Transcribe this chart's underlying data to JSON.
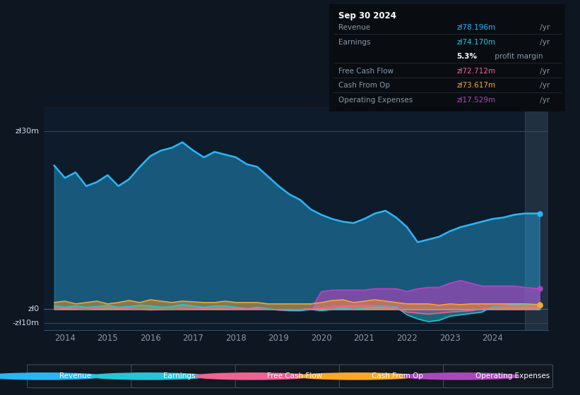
{
  "bg_color": "#0e1621",
  "plot_bg_color": "#0d1b2a",
  "xlim": [
    2013.5,
    2025.3
  ],
  "ylim": [
    -15,
    148
  ],
  "xticks": [
    2014,
    2015,
    2016,
    2017,
    2018,
    2019,
    2020,
    2021,
    2022,
    2023,
    2024
  ],
  "hlines": [
    {
      "y": 130,
      "label": "zł30m"
    },
    {
      "y": 0,
      "label": "zł0"
    },
    {
      "y": -10,
      "label": "-zł10m"
    }
  ],
  "colors": {
    "revenue": "#29b6f6",
    "earnings": "#26c6da",
    "free_cash_flow": "#f06292",
    "cash_from_op": "#ffa726",
    "operating_expenses": "#ab47bc"
  },
  "revenue_x": [
    2013.75,
    2014.0,
    2014.25,
    2014.5,
    2014.75,
    2015.0,
    2015.25,
    2015.5,
    2015.75,
    2016.0,
    2016.25,
    2016.5,
    2016.75,
    2017.0,
    2017.25,
    2017.5,
    2017.75,
    2018.0,
    2018.25,
    2018.5,
    2018.75,
    2019.0,
    2019.25,
    2019.5,
    2019.75,
    2020.0,
    2020.25,
    2020.5,
    2020.75,
    2021.0,
    2021.25,
    2021.5,
    2021.75,
    2022.0,
    2022.25,
    2022.5,
    2022.75,
    2023.0,
    2023.25,
    2023.5,
    2023.75,
    2024.0,
    2024.25,
    2024.5,
    2024.75,
    2025.1
  ],
  "revenue_y": [
    105,
    96,
    100,
    90,
    93,
    98,
    90,
    95,
    104,
    112,
    116,
    118,
    122,
    116,
    111,
    115,
    113,
    111,
    106,
    104,
    97,
    90,
    84,
    80,
    73,
    69,
    66,
    64,
    63,
    66,
    70,
    72,
    67,
    60,
    49,
    51,
    53,
    57,
    60,
    62,
    64,
    66,
    67,
    69,
    70,
    70
  ],
  "earnings_x": [
    2013.75,
    2014.0,
    2014.25,
    2014.5,
    2014.75,
    2015.0,
    2015.25,
    2015.5,
    2015.75,
    2016.0,
    2016.25,
    2016.5,
    2016.75,
    2017.0,
    2017.25,
    2017.5,
    2017.75,
    2018.0,
    2018.25,
    2018.5,
    2018.75,
    2019.0,
    2019.25,
    2019.5,
    2019.75,
    2020.0,
    2020.25,
    2020.5,
    2020.75,
    2021.0,
    2021.25,
    2021.5,
    2021.75,
    2022.0,
    2022.25,
    2022.5,
    2022.75,
    2023.0,
    2023.25,
    2023.5,
    2023.75,
    2024.0,
    2024.25,
    2024.5,
    2024.75,
    2025.1
  ],
  "earnings_y": [
    2.5,
    1.5,
    2.5,
    1.5,
    2,
    3,
    1.5,
    2,
    3,
    2.5,
    1.5,
    2,
    3.5,
    2.5,
    1.5,
    2.5,
    2.5,
    1.5,
    0.5,
    1.5,
    0.5,
    -0.5,
    -1,
    -1,
    0,
    -1,
    0,
    1,
    0,
    1,
    1.5,
    2.5,
    1.5,
    -4,
    -7,
    -9,
    -8,
    -5,
    -4,
    -3,
    -2,
    2,
    2.5,
    3.5,
    3.5,
    3
  ],
  "fcf_x": [
    2013.75,
    2014.0,
    2014.5,
    2015.0,
    2015.5,
    2016.0,
    2016.5,
    2017.0,
    2017.5,
    2018.0,
    2018.5,
    2019.0,
    2019.5,
    2020.0,
    2020.5,
    2021.0,
    2021.5,
    2022.0,
    2022.5,
    2023.0,
    2023.5,
    2024.0,
    2024.5,
    2024.75,
    2025.1
  ],
  "fcf_y": [
    0,
    1,
    0,
    1.5,
    0.5,
    -0.5,
    0,
    0.5,
    1,
    0.5,
    0.5,
    -0.5,
    0,
    1,
    2.5,
    3,
    2.5,
    -2,
    -3.5,
    -2,
    -1,
    1.5,
    2,
    2.5,
    2
  ],
  "cashfromop_x": [
    2013.75,
    2014.0,
    2014.25,
    2014.5,
    2014.75,
    2015.0,
    2015.25,
    2015.5,
    2015.75,
    2016.0,
    2016.25,
    2016.5,
    2016.75,
    2017.0,
    2017.25,
    2017.5,
    2017.75,
    2018.0,
    2018.25,
    2018.5,
    2018.75,
    2019.0,
    2019.25,
    2019.5,
    2019.75,
    2020.0,
    2020.25,
    2020.5,
    2020.75,
    2021.0,
    2021.25,
    2021.5,
    2021.75,
    2022.0,
    2022.25,
    2022.5,
    2022.75,
    2023.0,
    2023.25,
    2023.5,
    2023.75,
    2024.0,
    2024.25,
    2024.5,
    2024.75,
    2025.1
  ],
  "cashfromop_y": [
    5,
    6,
    4,
    5,
    6,
    4,
    5,
    6.5,
    5,
    7,
    6,
    5,
    6,
    5.5,
    5,
    5,
    6,
    5,
    5,
    5,
    4,
    4,
    4,
    4,
    4,
    5,
    6.5,
    7,
    5,
    6,
    7,
    6,
    5,
    4,
    4,
    4,
    3,
    4,
    3.5,
    4,
    4,
    4,
    4,
    4,
    4,
    3.5
  ],
  "opex_x": [
    2019.75,
    2020.0,
    2020.25,
    2020.5,
    2020.75,
    2021.0,
    2021.25,
    2021.5,
    2021.75,
    2022.0,
    2022.25,
    2022.5,
    2022.75,
    2023.0,
    2023.25,
    2023.5,
    2023.75,
    2024.0,
    2024.25,
    2024.5,
    2024.75,
    2025.1
  ],
  "opex_y": [
    0,
    13,
    14,
    14,
    14,
    14,
    15,
    15,
    15,
    13,
    15,
    16,
    16,
    19,
    21,
    19,
    17,
    17,
    17,
    17,
    16,
    15
  ],
  "legend": [
    {
      "label": "Revenue",
      "color": "#29b6f6"
    },
    {
      "label": "Earnings",
      "color": "#26c6da"
    },
    {
      "label": "Free Cash Flow",
      "color": "#f06292"
    },
    {
      "label": "Cash From Op",
      "color": "#ffa726"
    },
    {
      "label": "Operating Expenses",
      "color": "#ab47bc"
    }
  ],
  "infobox": {
    "title": "Sep 30 2024",
    "rows": [
      {
        "label": "Revenue",
        "value": "zł78.196m",
        "suffix": " /yr",
        "vcolor": "#29b6f6",
        "bold": false
      },
      {
        "label": "Earnings",
        "value": "zł74.170m",
        "suffix": " /yr",
        "vcolor": "#26c6da",
        "bold": false
      },
      {
        "label": "",
        "value": "5.3%",
        "suffix": " profit margin",
        "vcolor": "#ffffff",
        "bold": true
      },
      {
        "label": "Free Cash Flow",
        "value": "zł72.712m",
        "suffix": " /yr",
        "vcolor": "#f06292",
        "bold": false
      },
      {
        "label": "Cash From Op",
        "value": "zł73.617m",
        "suffix": " /yr",
        "vcolor": "#ffa726",
        "bold": false
      },
      {
        "label": "Operating Expenses",
        "value": "zł17.529m",
        "suffix": " /yr",
        "vcolor": "#ab47bc",
        "bold": false
      }
    ]
  }
}
